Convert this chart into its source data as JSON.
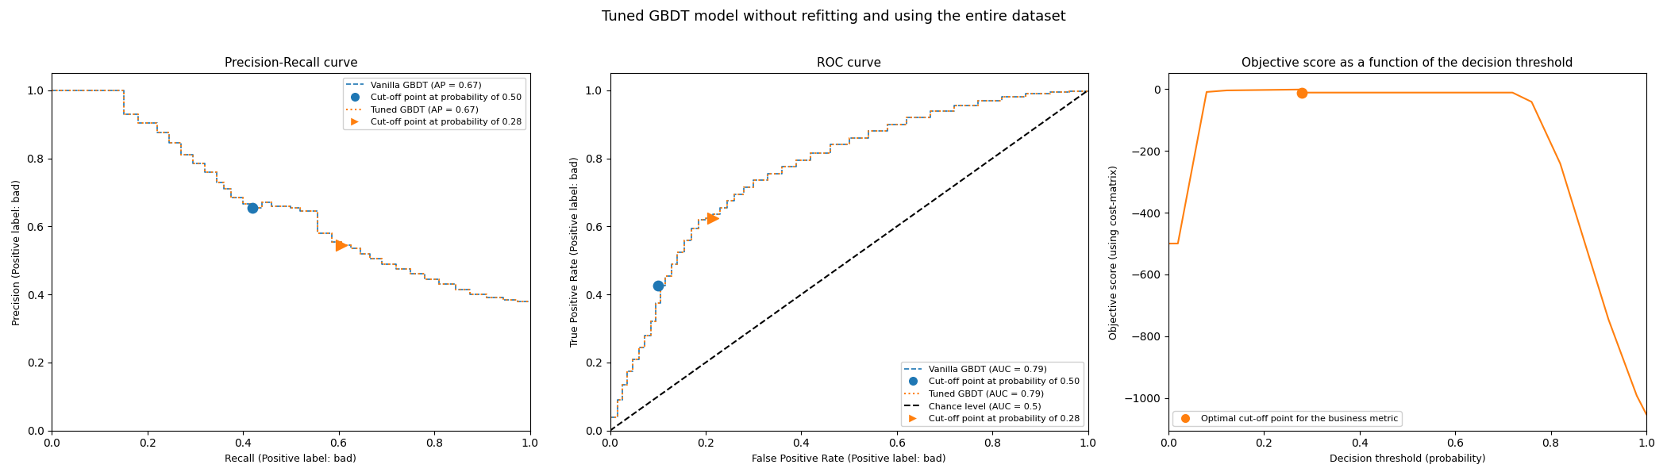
{
  "suptitle": "Tuned GBDT model without refitting and using the entire dataset",
  "panel1": {
    "title": "Precision-Recall curve",
    "xlabel": "Recall (Positive label: bad)",
    "ylabel": "Precision (Positive label: bad)",
    "vanilla_ap": "0.67",
    "tuned_ap": "0.67",
    "cutoff_blue_recall": 0.42,
    "cutoff_blue_precision": 0.655,
    "cutoff_orange_recall": 0.605,
    "cutoff_orange_precision": 0.545,
    "cutoff_blue_prob": "0.50",
    "cutoff_orange_prob": "0.28"
  },
  "panel2": {
    "title": "ROC curve",
    "xlabel": "False Positive Rate (Positive label: bad)",
    "ylabel": "True Positive Rate (Positive label: bad)",
    "vanilla_auc": "0.79",
    "tuned_auc": "0.79",
    "cutoff_blue_fpr": 0.1,
    "cutoff_blue_tpr": 0.425,
    "cutoff_orange_fpr": 0.215,
    "cutoff_orange_tpr": 0.625,
    "cutoff_blue_prob": "0.50",
    "cutoff_orange_prob": "0.28"
  },
  "panel3": {
    "title": "Objective score as a function of the decision threshold",
    "xlabel": "Decision threshold (probability)",
    "ylabel": "Objective score (using cost-matrix)",
    "optimal_threshold": 0.28,
    "optimal_score": -12,
    "legend_label": "Optimal cut-off point for the business metric"
  },
  "color_blue": "#1f77b4",
  "color_orange": "#ff7f0e",
  "color_black": "#000000"
}
